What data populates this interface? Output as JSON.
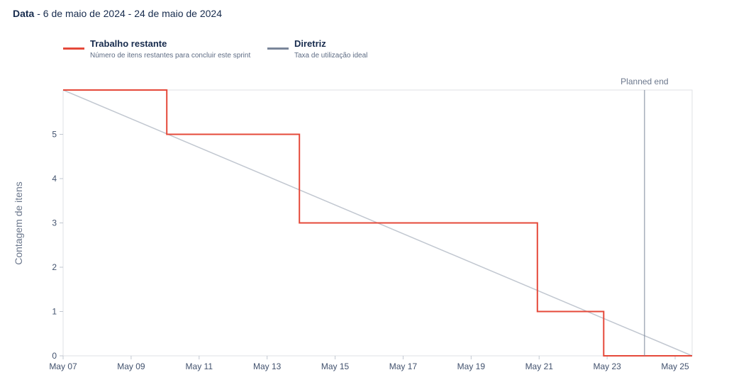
{
  "header": {
    "label": "Data",
    "range": " - 6 de maio de 2024 - 24 de maio de 2024"
  },
  "legend": [
    {
      "title": "Trabalho restante",
      "desc": "Número de itens restantes para concluir este sprint",
      "color": "#e5493a"
    },
    {
      "title": "Diretriz",
      "desc": "Taxa de utilização ideal",
      "color": "#7a869a"
    }
  ],
  "chart_data": {
    "type": "line",
    "title": "",
    "xlabel": "",
    "ylabel": "Contagem de itens",
    "x_range": [
      0,
      18.5
    ],
    "ylim": [
      0,
      6
    ],
    "x_ticks": [
      {
        "x": 0,
        "label": "May 07"
      },
      {
        "x": 2,
        "label": "May 09"
      },
      {
        "x": 4,
        "label": "May 11"
      },
      {
        "x": 6,
        "label": "May 13"
      },
      {
        "x": 8,
        "label": "May 15"
      },
      {
        "x": 10,
        "label": "May 17"
      },
      {
        "x": 12,
        "label": "May 19"
      },
      {
        "x": 14,
        "label": "May 21"
      },
      {
        "x": 16,
        "label": "May 23"
      },
      {
        "x": 18,
        "label": "May 25"
      }
    ],
    "y_ticks": [
      0,
      1,
      2,
      3,
      4,
      5
    ],
    "series": [
      {
        "name": "Trabalho restante",
        "color": "#e5493a",
        "step": true,
        "points": [
          [
            0,
            6
          ],
          [
            3.05,
            6
          ],
          [
            3.05,
            5
          ],
          [
            6.95,
            5
          ],
          [
            6.95,
            3
          ],
          [
            13.95,
            3
          ],
          [
            13.95,
            1
          ],
          [
            15.9,
            1
          ],
          [
            15.9,
            0
          ],
          [
            18.5,
            0
          ]
        ]
      },
      {
        "name": "Diretriz",
        "color": "#c1c7d0",
        "step": false,
        "points": [
          [
            0,
            6
          ],
          [
            18.5,
            0
          ]
        ]
      }
    ],
    "annotations": [
      {
        "type": "vline",
        "x": 17.1,
        "label": "Planned end",
        "color": "#7a869a"
      }
    ]
  }
}
